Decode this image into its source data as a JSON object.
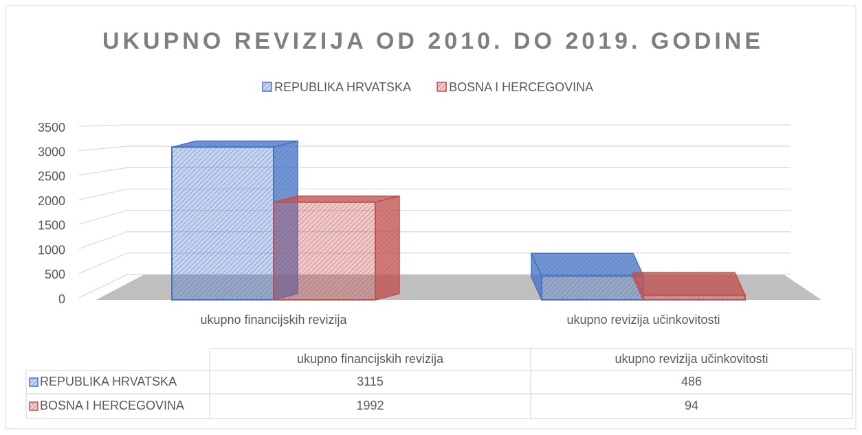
{
  "chart_data": {
    "type": "bar3d",
    "title": "UKUPNO REVIZIJA OD 2010. DO 2019. GODINE",
    "categories": [
      "ukupno financijskih revizija",
      "ukupno revizija učinkovitosti"
    ],
    "series": [
      {
        "name": "REPUBLIKA HRVATSKA",
        "color": "#4472c4",
        "values": [
          3115,
          486
        ]
      },
      {
        "name": "BOSNA I HERCEGOVINA",
        "color": "#c0504d",
        "values": [
          1992,
          94
        ]
      }
    ],
    "ylim": [
      0,
      3500
    ],
    "yticks": [
      0,
      500,
      1000,
      1500,
      2000,
      2500,
      3000,
      3500
    ],
    "grid": true,
    "legend": "top",
    "data_table": true
  }
}
